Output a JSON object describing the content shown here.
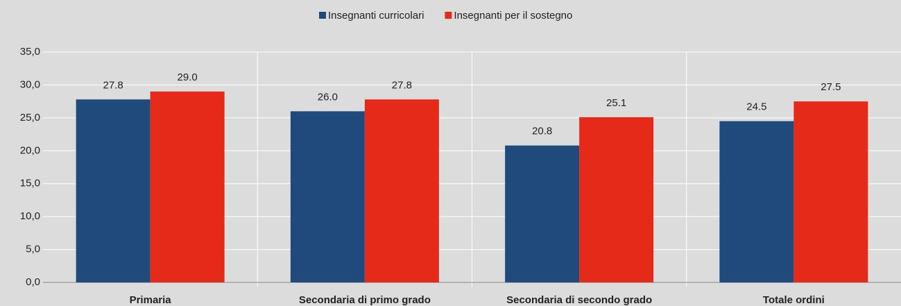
{
  "chart_data": {
    "type": "bar",
    "categories": [
      "Primaria",
      "Secondaria di primo grado",
      "Secondaria di secondo grado",
      "Totale ordini"
    ],
    "series": [
      {
        "name": "Insegnanti curricolari",
        "color": "#214a7c",
        "values": [
          27.8,
          26.0,
          20.8,
          24.5
        ],
        "value_labels": [
          "27.8",
          "26.0",
          "20.8",
          "24.5"
        ]
      },
      {
        "name": "Insegnanti per il sostegno",
        "color": "#e52a1a",
        "values": [
          29.0,
          27.8,
          25.1,
          27.5
        ],
        "value_labels": [
          "29.0",
          "27.8",
          "25.1",
          "27.5"
        ]
      }
    ],
    "ylim": [
      0,
      35
    ],
    "yticks": [
      {
        "value": 0,
        "label": "0,0"
      },
      {
        "value": 5,
        "label": "5,0"
      },
      {
        "value": 10,
        "label": "10,0"
      },
      {
        "value": 15,
        "label": "15,0"
      },
      {
        "value": 20,
        "label": "20,0"
      },
      {
        "value": 25,
        "label": "25,0"
      },
      {
        "value": 30,
        "label": "30,0"
      },
      {
        "value": 35,
        "label": "35,0"
      }
    ],
    "grid": true,
    "legend": "top"
  }
}
